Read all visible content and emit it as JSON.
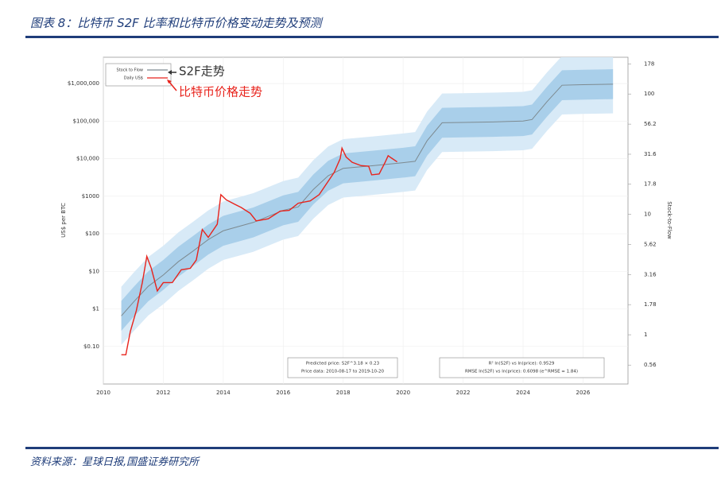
{
  "header": {
    "title": "图表 8：比特币 S2F 比率和比特币价格变动走势及预测"
  },
  "footer": {
    "source": "资料来源：星球日报,国盛证券研究所"
  },
  "chart_data": {
    "type": "line",
    "log_scale": true,
    "grid": true,
    "ylabel": "US$ per BTC",
    "y2label": "Stock-to-Flow",
    "xlim": [
      2010,
      2027.5
    ],
    "xticks": [
      2010,
      2012,
      2014,
      2016,
      2018,
      2020,
      2022,
      2024,
      2026
    ],
    "ylim": [
      0.01,
      5000000
    ],
    "yticks": [
      {
        "value": 0.1,
        "label": "$0.10"
      },
      {
        "value": 1,
        "label": "$1"
      },
      {
        "value": 10,
        "label": "$10"
      },
      {
        "value": 100,
        "label": "$100"
      },
      {
        "value": 1000,
        "label": "$1000"
      },
      {
        "value": 10000,
        "label": "$10,000"
      },
      {
        "value": 100000,
        "label": "$100,000"
      },
      {
        "value": 1000000,
        "label": "$1,000,000"
      }
    ],
    "y2lim": [
      0.39,
      202
    ],
    "y2ticks": [
      0.56,
      1,
      1.78,
      3.16,
      5.62,
      10,
      17.8,
      31.6,
      56.2,
      100,
      178
    ],
    "series": [
      {
        "name": "Stock to Flow",
        "color": "#7d8a90",
        "x": [
          2010.6,
          2011,
          2011.5,
          2012,
          2012.5,
          2013,
          2013.5,
          2014,
          2015,
          2016,
          2016.5,
          2017,
          2017.5,
          2018,
          2019,
          2020,
          2020.4,
          2020.8,
          2021.3,
          2022,
          2023,
          2024,
          2024.3,
          2024.8,
          2025.3,
          2026,
          2027
        ],
        "values": [
          0.65,
          1.5,
          4,
          8,
          18,
          35,
          70,
          120,
          200,
          420,
          520,
          1500,
          3500,
          5500,
          6500,
          7800,
          8500,
          30000,
          90000,
          92000,
          95000,
          100000,
          110000,
          330000,
          900000,
          930000,
          960000
        ]
      },
      {
        "name": "Daily US$",
        "color": "#e8231c",
        "x": [
          2010.6,
          2010.75,
          2010.9,
          2011.1,
          2011.3,
          2011.45,
          2011.6,
          2011.8,
          2012,
          2012.3,
          2012.6,
          2012.9,
          2013.1,
          2013.3,
          2013.5,
          2013.8,
          2013.92,
          2014.1,
          2014.4,
          2014.6,
          2014.9,
          2015.1,
          2015.5,
          2015.9,
          2016.2,
          2016.5,
          2016.9,
          2017.2,
          2017.5,
          2017.7,
          2017.9,
          2017.96,
          2018.1,
          2018.3,
          2018.6,
          2018.85,
          2018.95,
          2019.2,
          2019.4,
          2019.5,
          2019.6,
          2019.8
        ],
        "values": [
          0.06,
          0.06,
          0.25,
          0.9,
          5,
          25,
          12,
          3,
          5,
          5,
          11,
          12,
          20,
          130,
          80,
          180,
          1100,
          800,
          600,
          500,
          350,
          220,
          250,
          400,
          420,
          650,
          750,
          1100,
          2500,
          4300,
          10000,
          19000,
          11000,
          8000,
          6500,
          6300,
          3700,
          3900,
          8000,
          12000,
          10500,
          8200
        ]
      }
    ],
    "bands": [
      {
        "color": "#d8eaf7",
        "lower": [
          0.11,
          0.25,
          0.67,
          1.33,
          3,
          5.8,
          11.7,
          20,
          33,
          70,
          87,
          250,
          583,
          917,
          1083,
          1300,
          1417,
          5000,
          15000,
          15333,
          15833,
          16667,
          18333,
          55000,
          150000,
          155000,
          160000
        ],
        "upper": [
          3.9,
          9,
          24,
          48,
          108,
          210,
          420,
          720,
          1200,
          2520,
          3120,
          9000,
          21000,
          33000,
          39000,
          46800,
          51000,
          180000,
          540000,
          552000,
          570000,
          600000,
          660000,
          1980000,
          5400000,
          5580000,
          5760000
        ]
      },
      {
        "color": "#a9cfea",
        "lower": [
          0.26,
          0.6,
          1.6,
          3.2,
          7.2,
          14,
          28,
          48,
          80,
          168,
          208,
          600,
          1400,
          2200,
          2600,
          3120,
          3400,
          12000,
          36000,
          36800,
          38000,
          40000,
          44000,
          132000,
          360000,
          372000,
          384000
        ],
        "upper": [
          1.63,
          3.75,
          10,
          20,
          45,
          88,
          175,
          300,
          500,
          1050,
          1300,
          3750,
          8750,
          13750,
          16250,
          19500,
          21250,
          75000,
          225000,
          230000,
          237500,
          250000,
          275000,
          825000,
          2250000,
          2325000,
          2400000
        ]
      }
    ],
    "annotations": [
      "S2F走势",
      "比特币价格走势"
    ],
    "text_boxes": [
      [
        "Predicted price: S2F^3.18 × 0.23",
        "Price data: 2010-08-17 to 2019-10-20"
      ],
      [
        "R² ln(S2F) vs ln(price): 0.9529",
        "RMSE ln(S2F) vs ln(price): 0.6098 (e^RMSE = 1.84)"
      ]
    ]
  }
}
